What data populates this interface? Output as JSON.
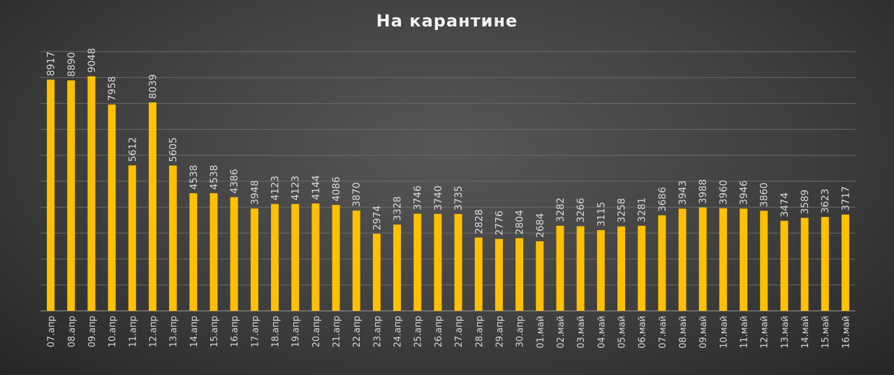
{
  "chart_data": {
    "type": "bar",
    "title": "На карантине",
    "xlabel": "",
    "ylabel": "",
    "ylim": [
      0,
      10000
    ],
    "grid": true,
    "legend": "none",
    "colors": {
      "bar": "#FFC000",
      "grid": "#6a6a6a",
      "axis": "#9a9a9a",
      "text": "#d9d9d9",
      "title": "#f2f2f2"
    },
    "categories": [
      "07.апр",
      "08.апр",
      "09.апр",
      "10.апр",
      "11.апр",
      "12.апр",
      "13.апр",
      "14.апр",
      "15.апр",
      "16.апр",
      "17.апр",
      "18.апр",
      "19.апр",
      "20.апр",
      "21.апр",
      "22.апр",
      "23.апр",
      "24.апр",
      "25.апр",
      "26.апр",
      "27.апр",
      "28.апр",
      "29.апр",
      "30.апр",
      "01.май",
      "02.май",
      "03.май",
      "04.май",
      "05.май",
      "06.май",
      "07.май",
      "08.май",
      "09.май",
      "10.май",
      "11.май",
      "12.май",
      "13.май",
      "14.май",
      "15.май",
      "16.май"
    ],
    "values": [
      8917,
      8890,
      9048,
      7958,
      5612,
      8039,
      5605,
      4538,
      4538,
      4386,
      3948,
      4123,
      4123,
      4144,
      4086,
      3870,
      2974,
      3328,
      3746,
      3740,
      3735,
      2828,
      2776,
      2804,
      2684,
      3282,
      3266,
      3115,
      3258,
      3281,
      3686,
      3943,
      3988,
      3960,
      3946,
      3860,
      3474,
      3589,
      3623,
      3717
    ]
  }
}
